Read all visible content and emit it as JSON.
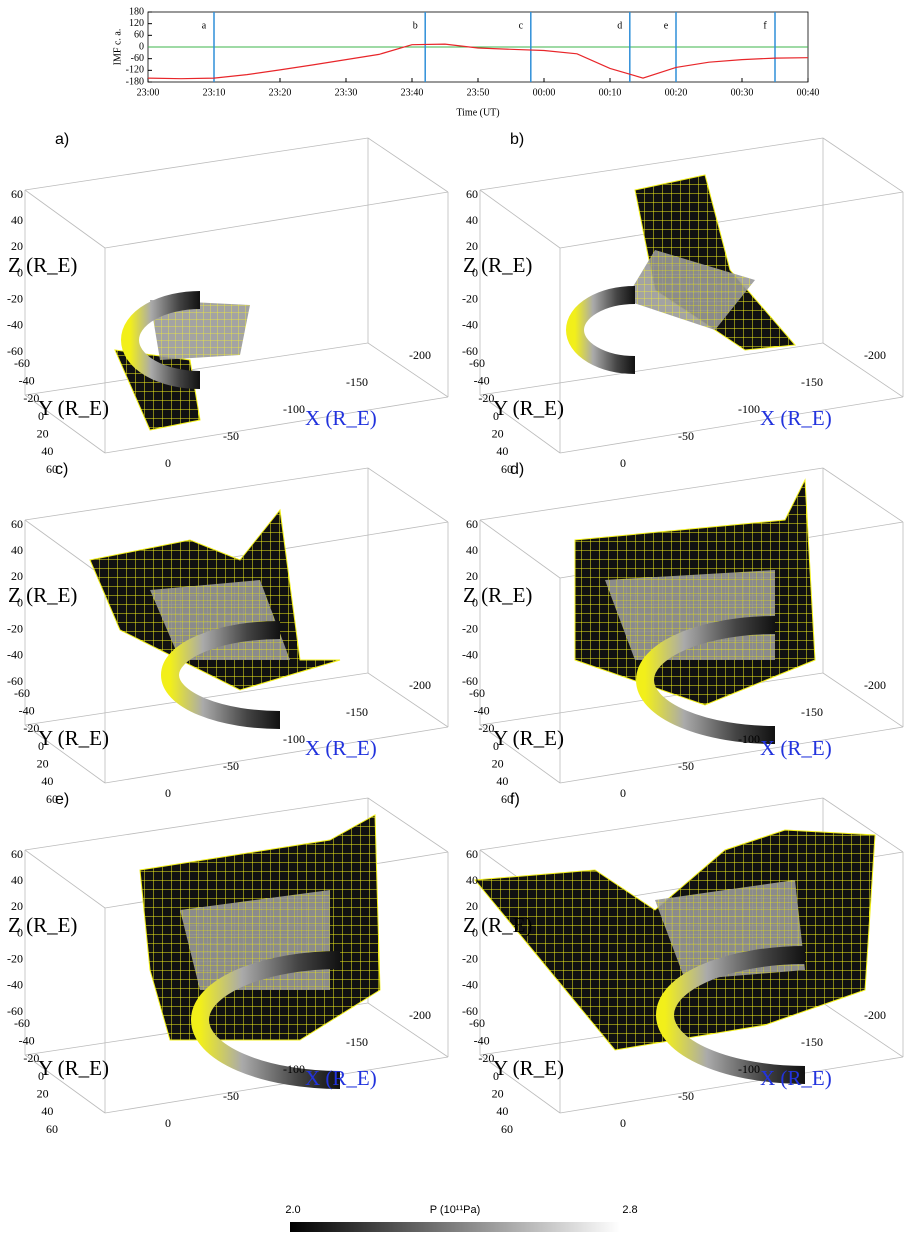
{
  "chart_data": {
    "type": "line",
    "xlabel": "Time (UT)",
    "ylabel": "IMF c. a.",
    "x": [
      "23:00",
      "23:05",
      "23:10",
      "23:15",
      "23:20",
      "23:25",
      "23:30",
      "23:35",
      "23:40",
      "23:45",
      "23:50",
      "23:55",
      "00:00",
      "00:05",
      "00:10",
      "00:15",
      "00:20",
      "00:25",
      "00:30",
      "00:35",
      "00:40"
    ],
    "series": [
      {
        "color": "#e8262a",
        "values": [
          -160,
          -163,
          -160,
          -142,
          -118,
          -92,
          -65,
          -38,
          12,
          15,
          -5,
          -12,
          -18,
          -35,
          -110,
          -160,
          -105,
          -78,
          -65,
          -57,
          -55
        ]
      }
    ],
    "xlim": [
      "23:00",
      "00:40"
    ],
    "xticks": [
      "23:00",
      "23:10",
      "23:20",
      "23:30",
      "23:40",
      "23:50",
      "00:00",
      "00:10",
      "00:20",
      "00:30",
      "00:40"
    ],
    "ylim": [
      -180,
      180
    ],
    "yticks": [
      -180,
      -120,
      -60,
      0,
      60,
      120,
      180
    ],
    "zero_line": true,
    "zero_line_color": "#3cb44b",
    "markers": [
      {
        "label": "a",
        "x": "23:10"
      },
      {
        "label": "b",
        "x": "23:42"
      },
      {
        "label": "c",
        "x": "23:58"
      },
      {
        "label": "d",
        "x": "00:13"
      },
      {
        "label": "e",
        "x": "00:20"
      },
      {
        "label": "f",
        "x": "00:35"
      }
    ],
    "marker_color": "#2f8fd8"
  },
  "panels": [
    {
      "label": "a)"
    },
    {
      "label": "b)"
    },
    {
      "label": "c)"
    },
    {
      "label": "d)"
    },
    {
      "label": "e)"
    },
    {
      "label": "f)"
    }
  ],
  "axes3d": {
    "xlabel": "X (R_E)",
    "ylabel": "Y (R_E)",
    "zlabel": "Z (R_E)",
    "xticks": [
      0,
      -50,
      -100,
      -150,
      -200
    ],
    "yticks": [
      -60,
      -40,
      -20,
      0,
      20,
      40,
      60
    ],
    "zticks": [
      60,
      40,
      20,
      0,
      -20,
      -40,
      -60
    ]
  },
  "colorbar": {
    "title": "P (10¹¹Pa)",
    "lim": [
      2,
      2.8
    ],
    "ticks": [
      {
        "value": 2,
        "label": "2.0"
      },
      {
        "value": 2.8,
        "label": "2.8"
      }
    ]
  }
}
